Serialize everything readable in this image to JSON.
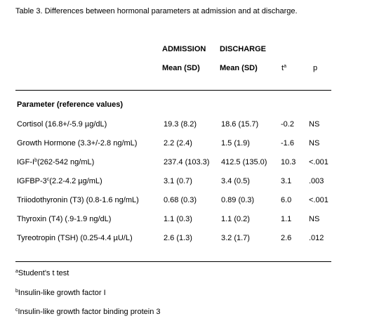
{
  "title": "Table 3. Differences between hormonal parameters at admission and at discharge.",
  "table": {
    "header": {
      "admission": "ADMISSION",
      "discharge": "DISCHARGE",
      "admission_stat": "Mean (SD)",
      "discharge_stat": "Mean (SD)",
      "t": {
        "text": "t",
        "sup": "a"
      },
      "p": "p"
    },
    "section": "Parameter (reference values)",
    "rows": [
      {
        "parameter": "Cortisol",
        "reference": "(16.8+/-5.9 µg/dL)",
        "admission": "19.3 (8.2)",
        "discharge": "18.6 (15.7)",
        "t": "-0.2",
        "p": "NS"
      },
      {
        "parameter": "Growth Hormone",
        "reference": "(3.3+/-2.8 ng/mL)",
        "admission": "2.2 (2.4)",
        "discharge": "1.5 (1.9)",
        "t": "-1.6",
        "p": "NS"
      },
      {
        "parameter": "IGF-I",
        "sup": "b",
        "reference": "(262-542 ng/mL)",
        "admission": "237.4 (103.3)",
        "discharge": "412.5 (135.0)",
        "t": "10.3",
        "p": "<.001"
      },
      {
        "parameter": "IGFBP-3",
        "sup": "c",
        "reference": "(2.2-4.2 µg/mL)",
        "admission": "3.1 (0.7)",
        "discharge": "3.4 (0.5)",
        "t": "3.1",
        "p": ".003"
      },
      {
        "parameter": "Triiodothyronin (T3)",
        "reference": "(0.8-1.6 ng/mL)",
        "admission": "0.68 (0.3)",
        "discharge": "0.89 (0.3)",
        "t": "6.0",
        "p": "<.001"
      },
      {
        "parameter": "Thyroxin (T4)",
        "reference": "(.9-1.9 ng/dL)",
        "admission": "1.1 (0.3)",
        "discharge": "1.1 (0.2)",
        "t": "1.1",
        "p": "NS"
      },
      {
        "parameter": "Tyreotropin (TSH)",
        "reference": "(0.25-4.4 µU/L)",
        "admission": "2.6 (1.3)",
        "discharge": "3.2 (1.7)",
        "t": "2.6",
        "p": ".012"
      }
    ]
  },
  "footnotes": [
    {
      "mark": "a",
      "text": "Student's t test"
    },
    {
      "mark": "b",
      "text": "Insulin-like growth factor I"
    },
    {
      "mark": "c",
      "text": "Insulin-like growth factor binding protein 3"
    }
  ]
}
